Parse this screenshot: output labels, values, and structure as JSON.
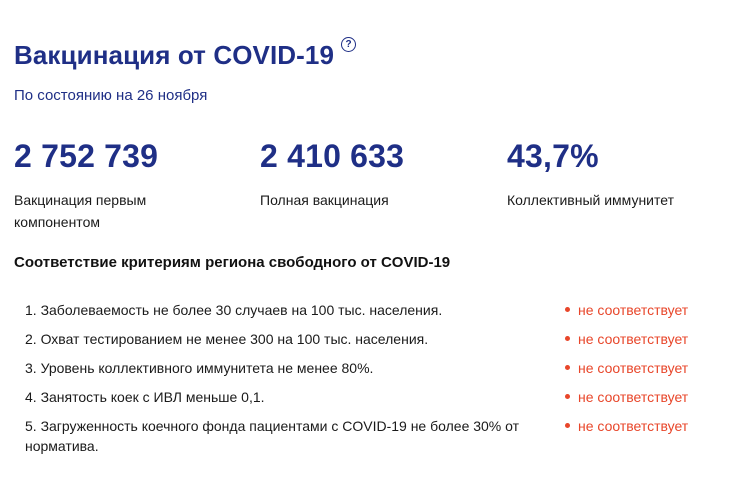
{
  "header": {
    "title": "Вакцинация от COVID-19",
    "help_icon": "?",
    "date_text": "По состоянию на 26 ноября"
  },
  "stats": [
    {
      "value": "2 752 739",
      "label": "Вакцинация первым компонентом"
    },
    {
      "value": "2 410 633",
      "label": "Полная вакцинация"
    },
    {
      "value": "43,7%",
      "label": "Коллективный иммунитет"
    }
  ],
  "criteria": {
    "title": "Соответствие критериям региона свободного от COVID-19",
    "items": [
      {
        "text": "1. Заболеваемость не более 30 случаев на 100 тыс. населения.",
        "status": "не соответствует"
      },
      {
        "text": "2. Охват тестированием не менее 300 на 100 тыс. населения.",
        "status": "не соответствует"
      },
      {
        "text": "3. Уровень коллективного иммунитета не менее 80%.",
        "status": "не соответствует"
      },
      {
        "text": "4. Занятость коек с ИВЛ меньше 0,1.",
        "status": "не соответствует"
      },
      {
        "text": "5. Загруженность коечного фонда пациентами с COVID-19 не более 30% от норматива.",
        "status": "не соответствует"
      }
    ]
  },
  "colors": {
    "primary": "#1f2f86",
    "status_negative": "#e8462a"
  }
}
